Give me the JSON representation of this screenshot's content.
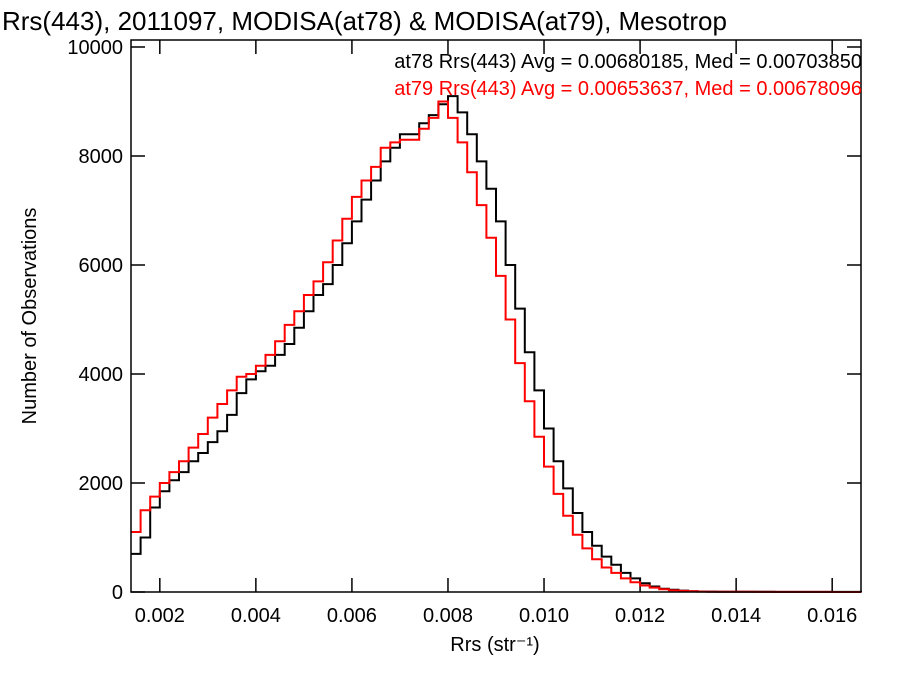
{
  "chart_data": {
    "type": "line",
    "title": "Rrs(443), 2011097, MODISA(at78) & MODISA(at79), Mesotrop",
    "xlabel": "Rrs (str⁻¹)",
    "ylabel": "Number of Observations",
    "xlim": [
      0.0014,
      0.0166
    ],
    "ylim": [
      0,
      10000
    ],
    "x_ticks": [
      0.002,
      0.004,
      0.006,
      0.008,
      0.01,
      0.012,
      0.014,
      0.016
    ],
    "x_tick_labels": [
      "0.002",
      "0.004",
      "0.006",
      "0.008",
      "0.010",
      "0.012",
      "0.014",
      "0.016"
    ],
    "y_ticks": [
      0,
      2000,
      4000,
      6000,
      8000,
      10000
    ],
    "y_tick_labels": [
      "0",
      "2000",
      "4000",
      "6000",
      "8000",
      "10000"
    ],
    "grid": false,
    "legend_placement": "top-right",
    "series": [
      {
        "name": "at78",
        "color": "#000000",
        "legend": "at78 Rrs(443) Avg = 0.00680185, Med = 0.00703850",
        "x": [
          0.0014,
          0.0016,
          0.0018,
          0.002,
          0.0022,
          0.0024,
          0.0026,
          0.0028,
          0.003,
          0.0032,
          0.0034,
          0.0036,
          0.0038,
          0.004,
          0.0042,
          0.0044,
          0.0046,
          0.0048,
          0.005,
          0.0052,
          0.0054,
          0.0056,
          0.0058,
          0.006,
          0.0062,
          0.0064,
          0.0066,
          0.0068,
          0.007,
          0.0072,
          0.0074,
          0.0076,
          0.0078,
          0.008,
          0.0082,
          0.0084,
          0.0086,
          0.0088,
          0.009,
          0.0092,
          0.0094,
          0.0096,
          0.0098,
          0.01,
          0.0102,
          0.0104,
          0.0106,
          0.0108,
          0.011,
          0.0112,
          0.0114,
          0.0116,
          0.0118,
          0.012,
          0.0122,
          0.0124,
          0.0126,
          0.0128,
          0.013,
          0.0132,
          0.0134,
          0.0136,
          0.0138,
          0.014,
          0.0144,
          0.0148,
          0.0152,
          0.0156,
          0.016,
          0.0166
        ],
        "y": [
          700,
          1000,
          1550,
          1850,
          2050,
          2200,
          2400,
          2550,
          2750,
          2950,
          3250,
          3650,
          3900,
          4050,
          4150,
          4350,
          4550,
          4850,
          5150,
          5450,
          5650,
          6000,
          6400,
          6800,
          7200,
          7550,
          7900,
          8150,
          8400,
          8400,
          8600,
          8750,
          8950,
          9100,
          8800,
          8400,
          7900,
          7400,
          6800,
          6000,
          5200,
          4400,
          3700,
          3000,
          2400,
          1900,
          1450,
          1100,
          850,
          650,
          500,
          350,
          250,
          160,
          100,
          60,
          40,
          25,
          15,
          10,
          8,
          6,
          5,
          4,
          3,
          2,
          2,
          1,
          1,
          0
        ]
      },
      {
        "name": "at79",
        "color": "#ff0000",
        "legend": "at79 Rrs(443) Avg = 0.00653637, Med = 0.00678096",
        "x": [
          0.0014,
          0.0016,
          0.0018,
          0.002,
          0.0022,
          0.0024,
          0.0026,
          0.0028,
          0.003,
          0.0032,
          0.0034,
          0.0036,
          0.0038,
          0.004,
          0.0042,
          0.0044,
          0.0046,
          0.0048,
          0.005,
          0.0052,
          0.0054,
          0.0056,
          0.0058,
          0.006,
          0.0062,
          0.0064,
          0.0066,
          0.0068,
          0.007,
          0.0072,
          0.0074,
          0.0076,
          0.0078,
          0.008,
          0.0082,
          0.0084,
          0.0086,
          0.0088,
          0.009,
          0.0092,
          0.0094,
          0.0096,
          0.0098,
          0.01,
          0.0102,
          0.0104,
          0.0106,
          0.0108,
          0.011,
          0.0112,
          0.0114,
          0.0116,
          0.0118,
          0.012,
          0.0122,
          0.0124,
          0.0126,
          0.0128,
          0.013,
          0.0132,
          0.0134,
          0.0136,
          0.0138,
          0.014,
          0.0144,
          0.0148,
          0.0152,
          0.0156,
          0.016,
          0.0166
        ],
        "y": [
          1100,
          1500,
          1750,
          2000,
          2200,
          2400,
          2650,
          2900,
          3200,
          3450,
          3700,
          3950,
          4000,
          4150,
          4350,
          4600,
          4900,
          5150,
          5450,
          5700,
          6050,
          6450,
          6850,
          7250,
          7550,
          7800,
          8150,
          8250,
          8300,
          8300,
          8500,
          8700,
          9000,
          8700,
          8250,
          7700,
          7100,
          6500,
          5800,
          5000,
          4200,
          3500,
          2850,
          2300,
          1800,
          1400,
          1050,
          800,
          600,
          450,
          350,
          250,
          180,
          120,
          80,
          50,
          30,
          20,
          12,
          8,
          6,
          5,
          4,
          3,
          2,
          2,
          1,
          1,
          0,
          0
        ]
      }
    ]
  }
}
